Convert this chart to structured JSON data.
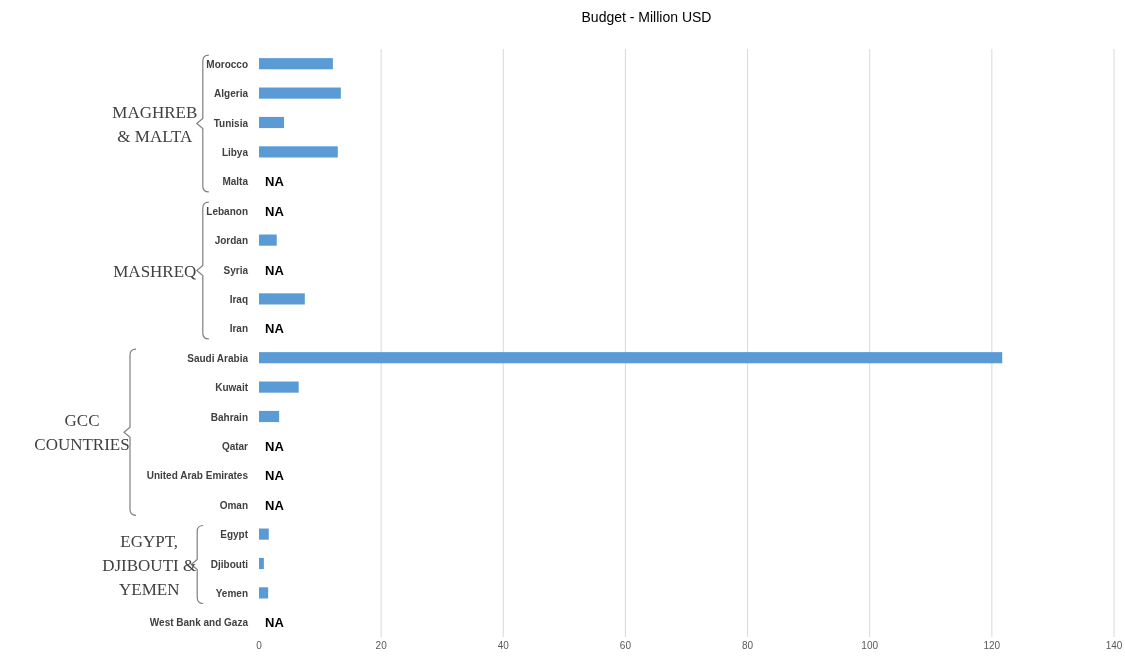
{
  "chart_data": {
    "type": "bar",
    "orientation": "horizontal",
    "title": "Budget - Million USD",
    "categories": [
      "Morocco",
      "Algeria",
      "Tunisia",
      "Libya",
      "Malta",
      "Lebanon",
      "Jordan",
      "Syria",
      "Iraq",
      "Iran",
      "Saudi Arabia",
      "Kuwait",
      "Bahrain",
      "Qatar",
      "United Arab Emirates",
      "Oman",
      "Egypt",
      "Djibouti",
      "Yemen",
      "West Bank and Gaza"
    ],
    "values": [
      12.1,
      13.4,
      4.1,
      12.9,
      null,
      null,
      2.9,
      null,
      7.5,
      null,
      121.7,
      6.5,
      3.3,
      null,
      null,
      null,
      1.6,
      0.8,
      1.5,
      null
    ],
    "value_labels": [
      null,
      null,
      null,
      null,
      "NA",
      "NA",
      null,
      "NA",
      null,
      "NA",
      null,
      null,
      null,
      "NA",
      "NA",
      "NA",
      null,
      null,
      null,
      "NA"
    ],
    "color": "#5b9bd5",
    "xlim": [
      0,
      140
    ],
    "xticks": [
      0,
      20,
      40,
      60,
      80,
      100,
      120,
      140
    ],
    "grid": "x",
    "annotations": [
      "MAGHREB\n& MALTA",
      "MASHREQ",
      "GCC\nCOUNTRIES",
      "EGYPT,\nDJIBOUTI &\nYEMEN"
    ]
  }
}
